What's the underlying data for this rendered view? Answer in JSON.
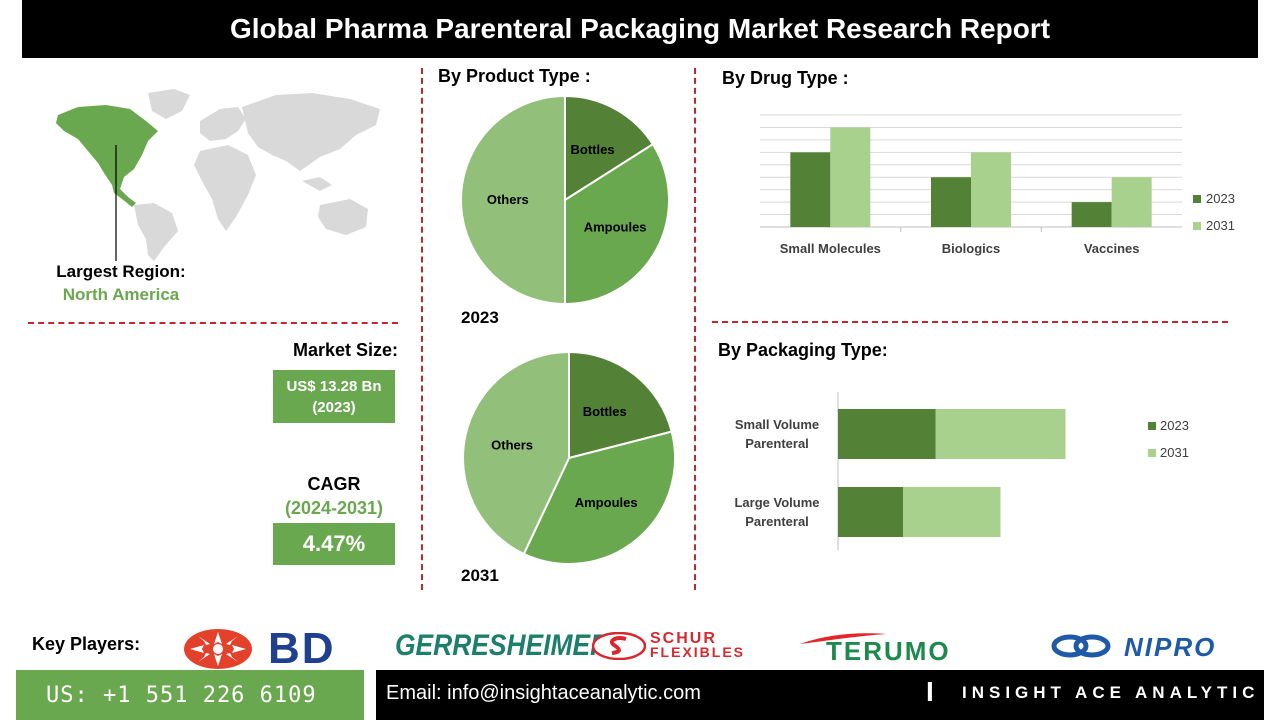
{
  "header": {
    "title": "Global Pharma Parenteral Packaging Market Research Report"
  },
  "region": {
    "label": "Largest Region:",
    "value": "North America"
  },
  "market_size": {
    "label": "Market Size:",
    "value_line1": "US$ 13.28 Bn",
    "value_line2": "(2023)"
  },
  "cagr": {
    "label": "CAGR",
    "period": "(2024-2031)",
    "value": "4.47%"
  },
  "product_type": {
    "title": "By  Product Type :"
  },
  "drug_type": {
    "title": "By Drug Type :"
  },
  "packaging_type": {
    "title": "By Packaging Type:"
  },
  "key_players": {
    "label": "Key Players:",
    "logos": [
      "BD",
      "GERRESHEIMER",
      "SCHUR",
      "FLEXIBLES",
      "TERUMO",
      "NIPRO"
    ]
  },
  "footer": {
    "phone": "US: +1 551 226 6109",
    "email": "Email: info@insightaceanalytic.com",
    "brand": "INSIGHT ACE ANALYTIC",
    "brand_mark": "I"
  },
  "colors": {
    "dark_green": "#538135",
    "mid_green": "#6aa84f",
    "light_green": "#a9d18e",
    "pale_green": "#92c07a",
    "accent_red": "#c0282d"
  },
  "chart_data": [
    {
      "type": "pie",
      "title": "2023",
      "categories": [
        "Bottles",
        "Ampoules",
        "Others"
      ],
      "values": [
        16,
        34,
        50
      ]
    },
    {
      "type": "pie",
      "title": "2031",
      "categories": [
        "Bottles",
        "Ampoules",
        "Others"
      ],
      "values": [
        21,
        36,
        43
      ]
    },
    {
      "type": "bar",
      "categories": [
        "Small Molecules",
        "Biologics",
        "Vaccines"
      ],
      "series": [
        {
          "name": "2023",
          "values": [
            3,
            2,
            1
          ]
        },
        {
          "name": "2031",
          "values": [
            4,
            3,
            2
          ]
        }
      ],
      "ylim": [
        0,
        4.5
      ],
      "grid": true,
      "legend": "right"
    },
    {
      "type": "bar",
      "orientation": "horizontal",
      "stacked": true,
      "categories": [
        "Small Volume Parenteral",
        "Large Volume Parenteral"
      ],
      "series": [
        {
          "name": "2023",
          "values": [
            1.5,
            1.0
          ]
        },
        {
          "name": "2031",
          "values": [
            2.0,
            1.5
          ]
        }
      ],
      "legend": "right"
    }
  ]
}
